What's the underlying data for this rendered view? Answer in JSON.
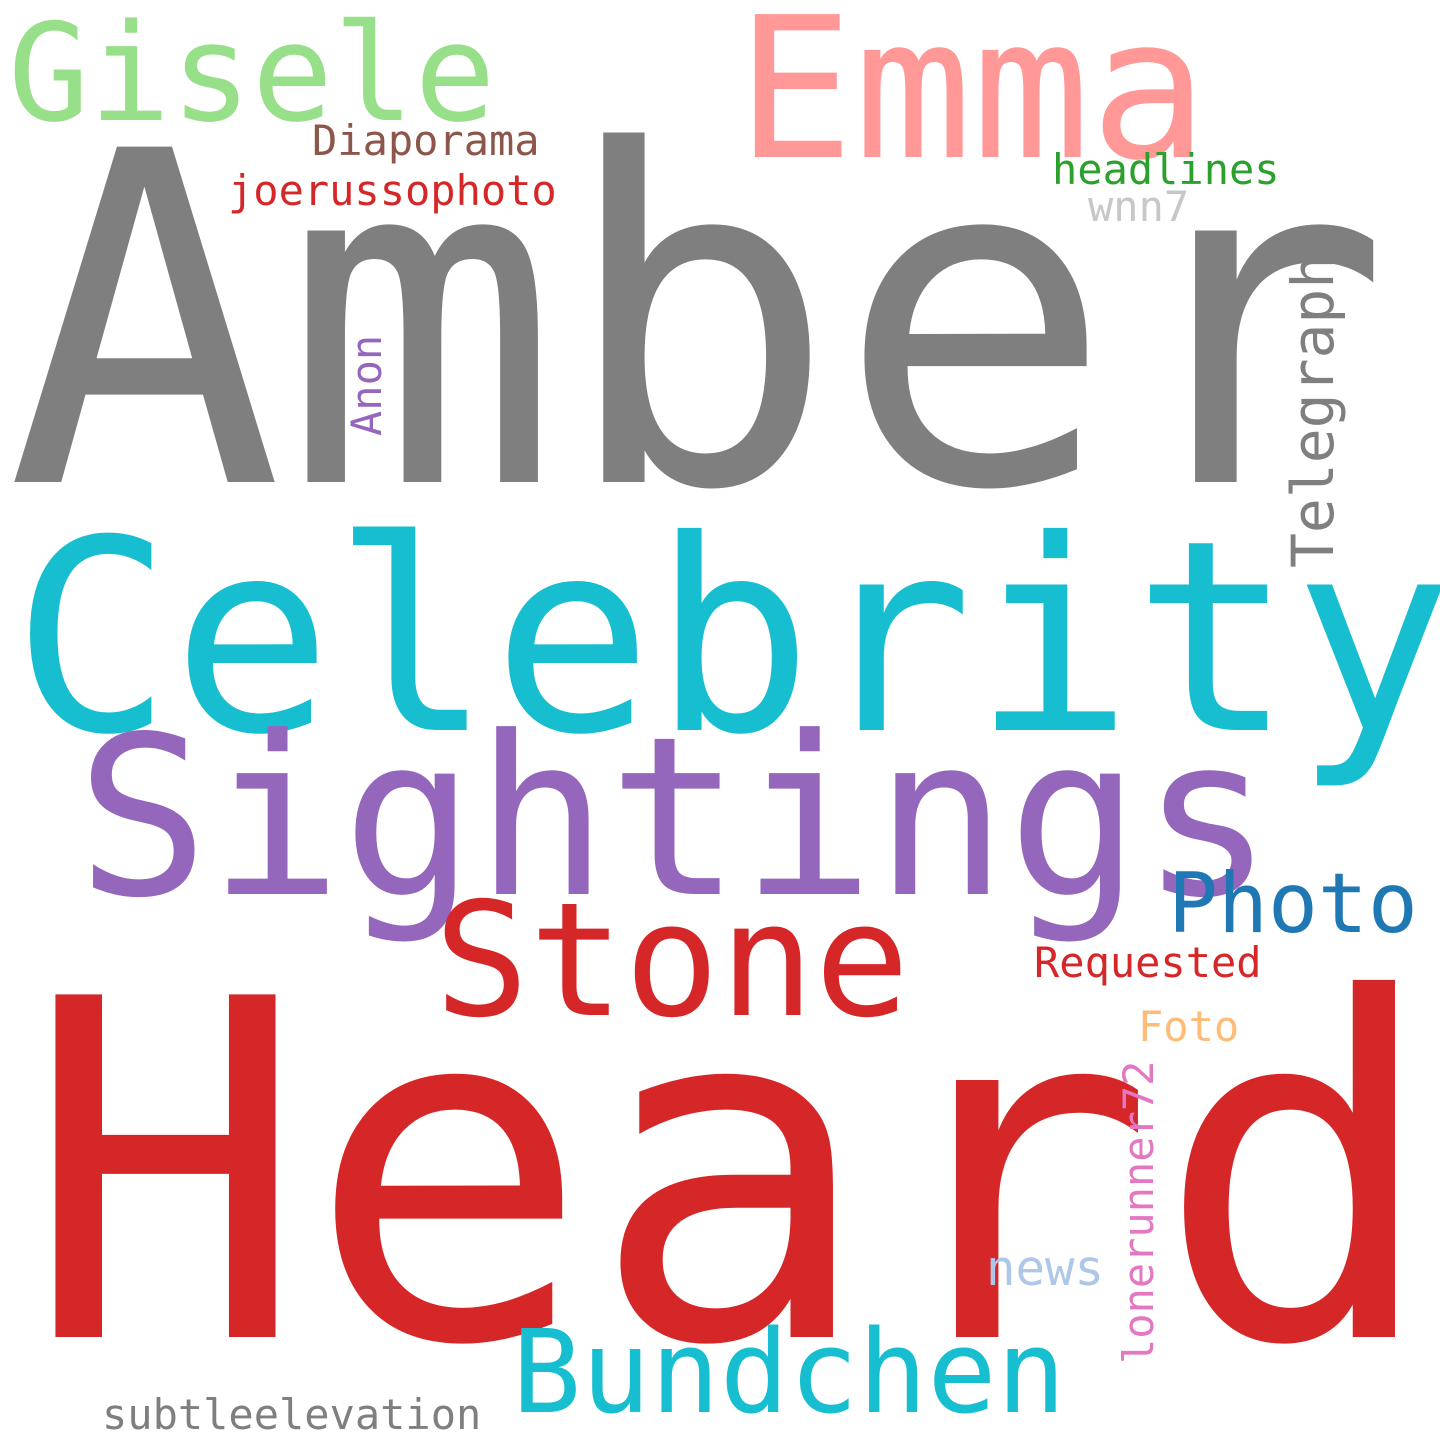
{
  "words": [
    {
      "key": "amber",
      "text": "Amber",
      "color": "#7f7f7f"
    },
    {
      "key": "heard",
      "text": "Heard",
      "color": "#d62728"
    },
    {
      "key": "celebrity",
      "text": "Celebrity",
      "color": "#17becf"
    },
    {
      "key": "sightings",
      "text": "Sightings",
      "color": "#9467bd"
    },
    {
      "key": "emma",
      "text": "Emma",
      "color": "#ff9896"
    },
    {
      "key": "gisele",
      "text": "Gisele",
      "color": "#98df8a"
    },
    {
      "key": "stone",
      "text": "Stone",
      "color": "#d62728"
    },
    {
      "key": "bundchen",
      "text": "Bundchen",
      "color": "#17becf"
    },
    {
      "key": "photo",
      "text": "Photo",
      "color": "#1f77b4"
    },
    {
      "key": "telegraph",
      "text": "Telegraph",
      "color": "#7f7f7f"
    },
    {
      "key": "requested",
      "text": "Requested",
      "color": "#d62728"
    },
    {
      "key": "diaporama",
      "text": "Diaporama",
      "color": "#8c564b"
    },
    {
      "key": "joerussophoto",
      "text": "joerussophoto",
      "color": "#d62728"
    },
    {
      "key": "headlines",
      "text": "headlines",
      "color": "#2ca02c"
    },
    {
      "key": "wnn7",
      "text": "wnn7",
      "color": "#c7c7c7"
    },
    {
      "key": "anon",
      "text": "Anon",
      "color": "#9467bd"
    },
    {
      "key": "foto",
      "text": "Foto",
      "color": "#ffbb78"
    },
    {
      "key": "lonerunner72",
      "text": "lonerunner72",
      "color": "#e377c2"
    },
    {
      "key": "news",
      "text": "news",
      "color": "#aec7e8"
    },
    {
      "key": "subtleelevation",
      "text": "subtleelevation",
      "color": "#7f7f7f"
    }
  ]
}
